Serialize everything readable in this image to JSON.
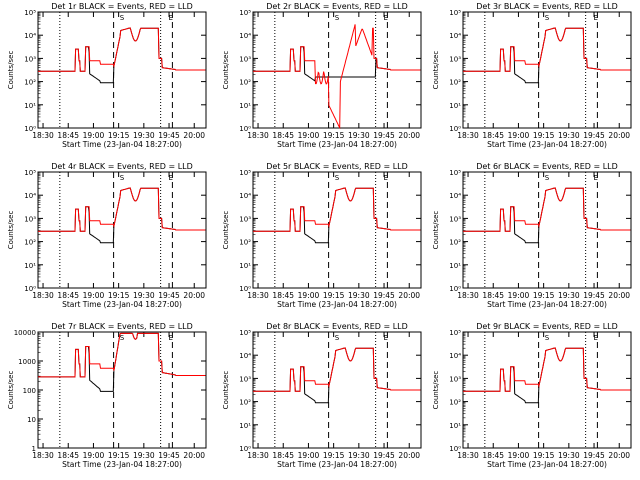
{
  "chart_data": [
    {
      "title": "Det 1r BLACK = Events, RED = LLD",
      "ylabel": "Counts/sec",
      "xlabel": "Start Time (23-Jan-04 18:27:00)",
      "yticks": [
        "10⁰",
        "10¹",
        "10²",
        "10³",
        "10⁴",
        "10⁵"
      ],
      "ylim": [
        0,
        5
      ]
    },
    {
      "title": "Det 2r BLACK = Events, RED = LLD",
      "ylabel": "Counts/sec",
      "xlabel": "Start Time (23-Jan-04 18:27:00)",
      "yticks": [
        "10⁰",
        "10¹",
        "10²",
        "10³",
        "10⁴",
        "10⁵"
      ],
      "ylim": [
        0,
        5
      ]
    },
    {
      "title": "Det 3r BLACK = Events, RED = LLD",
      "ylabel": "Counts/sec",
      "xlabel": "Start Time (23-Jan-04 18:27:00)",
      "yticks": [
        "10⁰",
        "10¹",
        "10²",
        "10³",
        "10⁴",
        "10⁵"
      ],
      "ylim": [
        0,
        5
      ]
    },
    {
      "title": "Det 4r BLACK = Events, RED = LLD",
      "ylabel": "Counts/sec",
      "xlabel": "Start Time (23-Jan-04 18:27:00)",
      "yticks": [
        "10⁰",
        "10¹",
        "10²",
        "10³",
        "10⁴",
        "10⁵"
      ],
      "ylim": [
        0,
        5
      ]
    },
    {
      "title": "Det 5r BLACK = Events, RED = LLD",
      "ylabel": "Counts/sec",
      "xlabel": "Start Time (23-Jan-04 18:27:00)",
      "yticks": [
        "10⁰",
        "10¹",
        "10²",
        "10³",
        "10⁴",
        "10⁵"
      ],
      "ylim": [
        0,
        5
      ]
    },
    {
      "title": "Det 6r BLACK = Events, RED = LLD",
      "ylabel": "Counts/sec",
      "xlabel": "Start Time (23-Jan-04 18:27:00)",
      "yticks": [
        "10⁰",
        "10¹",
        "10²",
        "10³",
        "10⁴",
        "10⁵"
      ],
      "ylim": [
        0,
        5
      ]
    },
    {
      "title": "Det 7r BLACK = Events, RED = LLD",
      "ylabel": "Counts/sec",
      "xlabel": "Start Time (23-Jan-04 18:27:00)",
      "yticks": [
        "1",
        "10",
        "100",
        "1000",
        "10000"
      ],
      "ylim": [
        0,
        4
      ]
    },
    {
      "title": "Det 8r BLACK = Events, RED = LLD",
      "ylabel": "Counts/sec",
      "xlabel": "Start Time (23-Jan-04 18:27:00)",
      "yticks": [
        "10⁰",
        "10¹",
        "10²",
        "10³",
        "10⁴",
        "10⁵"
      ],
      "ylim": [
        0,
        5
      ]
    },
    {
      "title": "Det 9r BLACK = Events, RED = LLD",
      "ylabel": "Counts/sec",
      "xlabel": "Start Time (23-Jan-04 18:27:00)",
      "yticks": [
        "10⁰",
        "10¹",
        "10²",
        "10³",
        "10⁴",
        "10⁵"
      ],
      "ylim": [
        0,
        5
      ]
    }
  ],
  "shared": {
    "type": "line",
    "log_y": true,
    "xtick_labels": [
      "18:30",
      "18:45",
      "19:00",
      "19:15",
      "19:30",
      "19:45",
      "20:00"
    ],
    "xtick_minutes": [
      30,
      45,
      60,
      75,
      90,
      105,
      120
    ],
    "xlim_minutes": [
      27,
      127
    ],
    "dotted_lines_minutes": [
      40,
      100
    ],
    "dashed_lines_minutes": [
      72,
      107
    ],
    "markers": [
      {
        "minute": 77,
        "label": "S"
      },
      {
        "minute": 106,
        "label": "E"
      }
    ],
    "series": [
      {
        "name": "Events",
        "color": "#000000"
      },
      {
        "name": "LLD",
        "color": "#ff0000"
      }
    ]
  }
}
